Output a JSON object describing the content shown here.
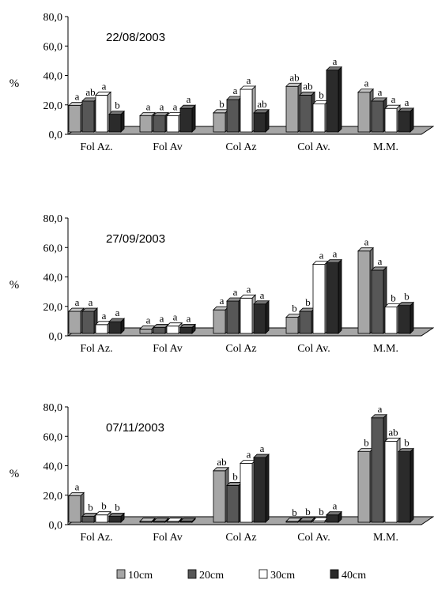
{
  "chart_data": [
    {
      "type": "bar",
      "title": "22/08/2003",
      "ylabel": "%",
      "ylim": [
        0,
        80
      ],
      "yticks": [
        "0,0",
        "20,0",
        "40,0",
        "60,0",
        "80,0"
      ],
      "categories": [
        "Fol Az.",
        "Fol Av",
        "Col Az",
        "Col Av.",
        "M.M."
      ],
      "series": [
        {
          "name": "10cm",
          "values": [
            18,
            11,
            13,
            31,
            27
          ],
          "labels": [
            "a",
            "a",
            "b",
            "ab",
            "a"
          ]
        },
        {
          "name": "20cm",
          "values": [
            21,
            11,
            22,
            25,
            21
          ],
          "labels": [
            "ab",
            "a",
            "a",
            "ab",
            "a"
          ]
        },
        {
          "name": "30cm",
          "values": [
            25,
            11,
            29,
            19,
            16
          ],
          "labels": [
            "a",
            "a",
            "a",
            "b",
            "a"
          ]
        },
        {
          "name": "40cm",
          "values": [
            12,
            16,
            13,
            42,
            14
          ],
          "labels": [
            "b",
            "a",
            "ab",
            "a",
            "a"
          ]
        }
      ]
    },
    {
      "type": "bar",
      "title": "27/09/2003",
      "ylabel": "%",
      "ylim": [
        0,
        80
      ],
      "yticks": [
        "0,0",
        "20,0",
        "40,0",
        "60,0",
        "80,0"
      ],
      "categories": [
        "Fol Az.",
        "Fol Av",
        "Col Az",
        "Col Av.",
        "M.M."
      ],
      "series": [
        {
          "name": "10cm",
          "values": [
            15,
            3,
            16,
            11,
            56
          ],
          "labels": [
            "a",
            "a",
            "a",
            "b",
            "a"
          ]
        },
        {
          "name": "20cm",
          "values": [
            15,
            4,
            22,
            15,
            43
          ],
          "labels": [
            "a",
            "a",
            "a",
            "b",
            "a"
          ]
        },
        {
          "name": "30cm",
          "values": [
            6,
            5,
            24,
            47,
            18
          ],
          "labels": [
            "a",
            "a",
            "a",
            "a",
            "b"
          ]
        },
        {
          "name": "40cm",
          "values": [
            8,
            4,
            20,
            48,
            19
          ],
          "labels": [
            "a",
            "a",
            "a",
            "a",
            "b"
          ]
        }
      ]
    },
    {
      "type": "bar",
      "title": "07/11/2003",
      "ylabel": "%",
      "ylim": [
        0,
        80
      ],
      "yticks": [
        "0,0",
        "20,0",
        "40,0",
        "60,0",
        "80,0"
      ],
      "categories": [
        "Fol Az.",
        "Fol Av",
        "Col Az",
        "Col Av.",
        "M.M."
      ],
      "series": [
        {
          "name": "10cm",
          "values": [
            18,
            0,
            35,
            0,
            48
          ],
          "labels": [
            "a",
            "",
            "ab",
            "b",
            "b"
          ]
        },
        {
          "name": "20cm",
          "values": [
            4,
            0,
            25,
            1,
            71
          ],
          "labels": [
            "b",
            "",
            "b",
            "b",
            "a"
          ]
        },
        {
          "name": "30cm",
          "values": [
            5,
            0,
            40,
            1,
            55
          ],
          "labels": [
            "b",
            "",
            "a",
            "b",
            "ab"
          ]
        },
        {
          "name": "40cm",
          "values": [
            4,
            0,
            44,
            5,
            48
          ],
          "labels": [
            "b",
            "",
            "a",
            "a",
            "b"
          ]
        }
      ]
    }
  ],
  "legend": {
    "position": "bottom",
    "items": [
      {
        "label": "10cm",
        "color": "#a6a6a6"
      },
      {
        "label": "20cm",
        "color": "#575757"
      },
      {
        "label": "30cm",
        "color": "#ffffff"
      },
      {
        "label": "40cm",
        "color": "#2b2b2b"
      }
    ]
  }
}
